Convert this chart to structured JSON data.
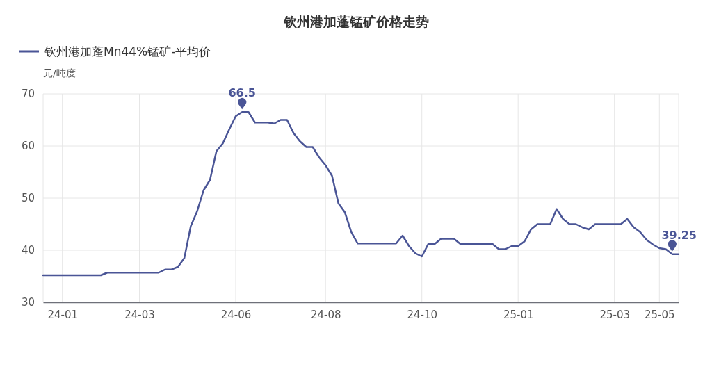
{
  "chart_data": {
    "type": "line",
    "title": "钦州港加蓬锰矿价格走势",
    "ylabel": "元/吨度",
    "categories": [
      null,
      null,
      null,
      "24-01",
      null,
      null,
      null,
      null,
      null,
      null,
      null,
      null,
      null,
      null,
      null,
      "24-03",
      null,
      null,
      null,
      null,
      null,
      null,
      null,
      null,
      null,
      null,
      null,
      null,
      null,
      null,
      "24-06",
      null,
      null,
      null,
      null,
      null,
      null,
      null,
      null,
      null,
      null,
      null,
      null,
      null,
      "24-08",
      null,
      null,
      null,
      null,
      null,
      null,
      null,
      null,
      null,
      null,
      null,
      null,
      null,
      null,
      "24-10",
      null,
      null,
      null,
      null,
      null,
      null,
      null,
      null,
      null,
      null,
      null,
      null,
      null,
      null,
      "25-01",
      null,
      null,
      null,
      null,
      null,
      null,
      null,
      null,
      null,
      null,
      null,
      null,
      null,
      null,
      "25-03",
      null,
      null,
      null,
      null,
      null,
      null,
      "25-05",
      null,
      null,
      null
    ],
    "series": [
      {
        "name": "钦州港加蓬Mn44%锰矿-平均价",
        "color": "#4a5596",
        "values": [
          35.2,
          35.2,
          35.2,
          35.2,
          35.2,
          35.2,
          35.2,
          35.2,
          35.2,
          35.2,
          35.7,
          35.7,
          35.7,
          35.7,
          35.7,
          35.7,
          35.7,
          35.7,
          35.7,
          36.3,
          36.3,
          36.8,
          38.5,
          44.6,
          47.5,
          51.5,
          53.5,
          59,
          60.5,
          63.2,
          65.7,
          66.5,
          66.5,
          64.5,
          64.5,
          64.5,
          64.3,
          65,
          65,
          62.5,
          60.9,
          59.8,
          59.8,
          57.8,
          56.3,
          54.3,
          49,
          47.3,
          43.5,
          41.3,
          41.3,
          41.3,
          41.3,
          41.3,
          41.3,
          41.3,
          42.8,
          40.8,
          39.4,
          38.8,
          41.2,
          41.2,
          42.2,
          42.2,
          42.2,
          41.2,
          41.2,
          41.2,
          41.2,
          41.2,
          41.2,
          40.2,
          40.2,
          40.8,
          40.8,
          41.7,
          44,
          45,
          45,
          45,
          47.9,
          46,
          45,
          45,
          44.4,
          44,
          45,
          45,
          45,
          45,
          45,
          46,
          44.4,
          43.5,
          42,
          41.1,
          40.4,
          40.2,
          39.25,
          39.25
        ]
      }
    ],
    "annotations": [
      {
        "text": "66.5",
        "y": 66.5
      },
      {
        "text": "39.25",
        "y": 39.25
      }
    ],
    "ylim": [
      30,
      70
    ],
    "yticks": [
      30,
      40,
      50,
      60,
      70
    ],
    "grid": true,
    "legend": "top left",
    "marker": "none",
    "line_style": "solid"
  }
}
